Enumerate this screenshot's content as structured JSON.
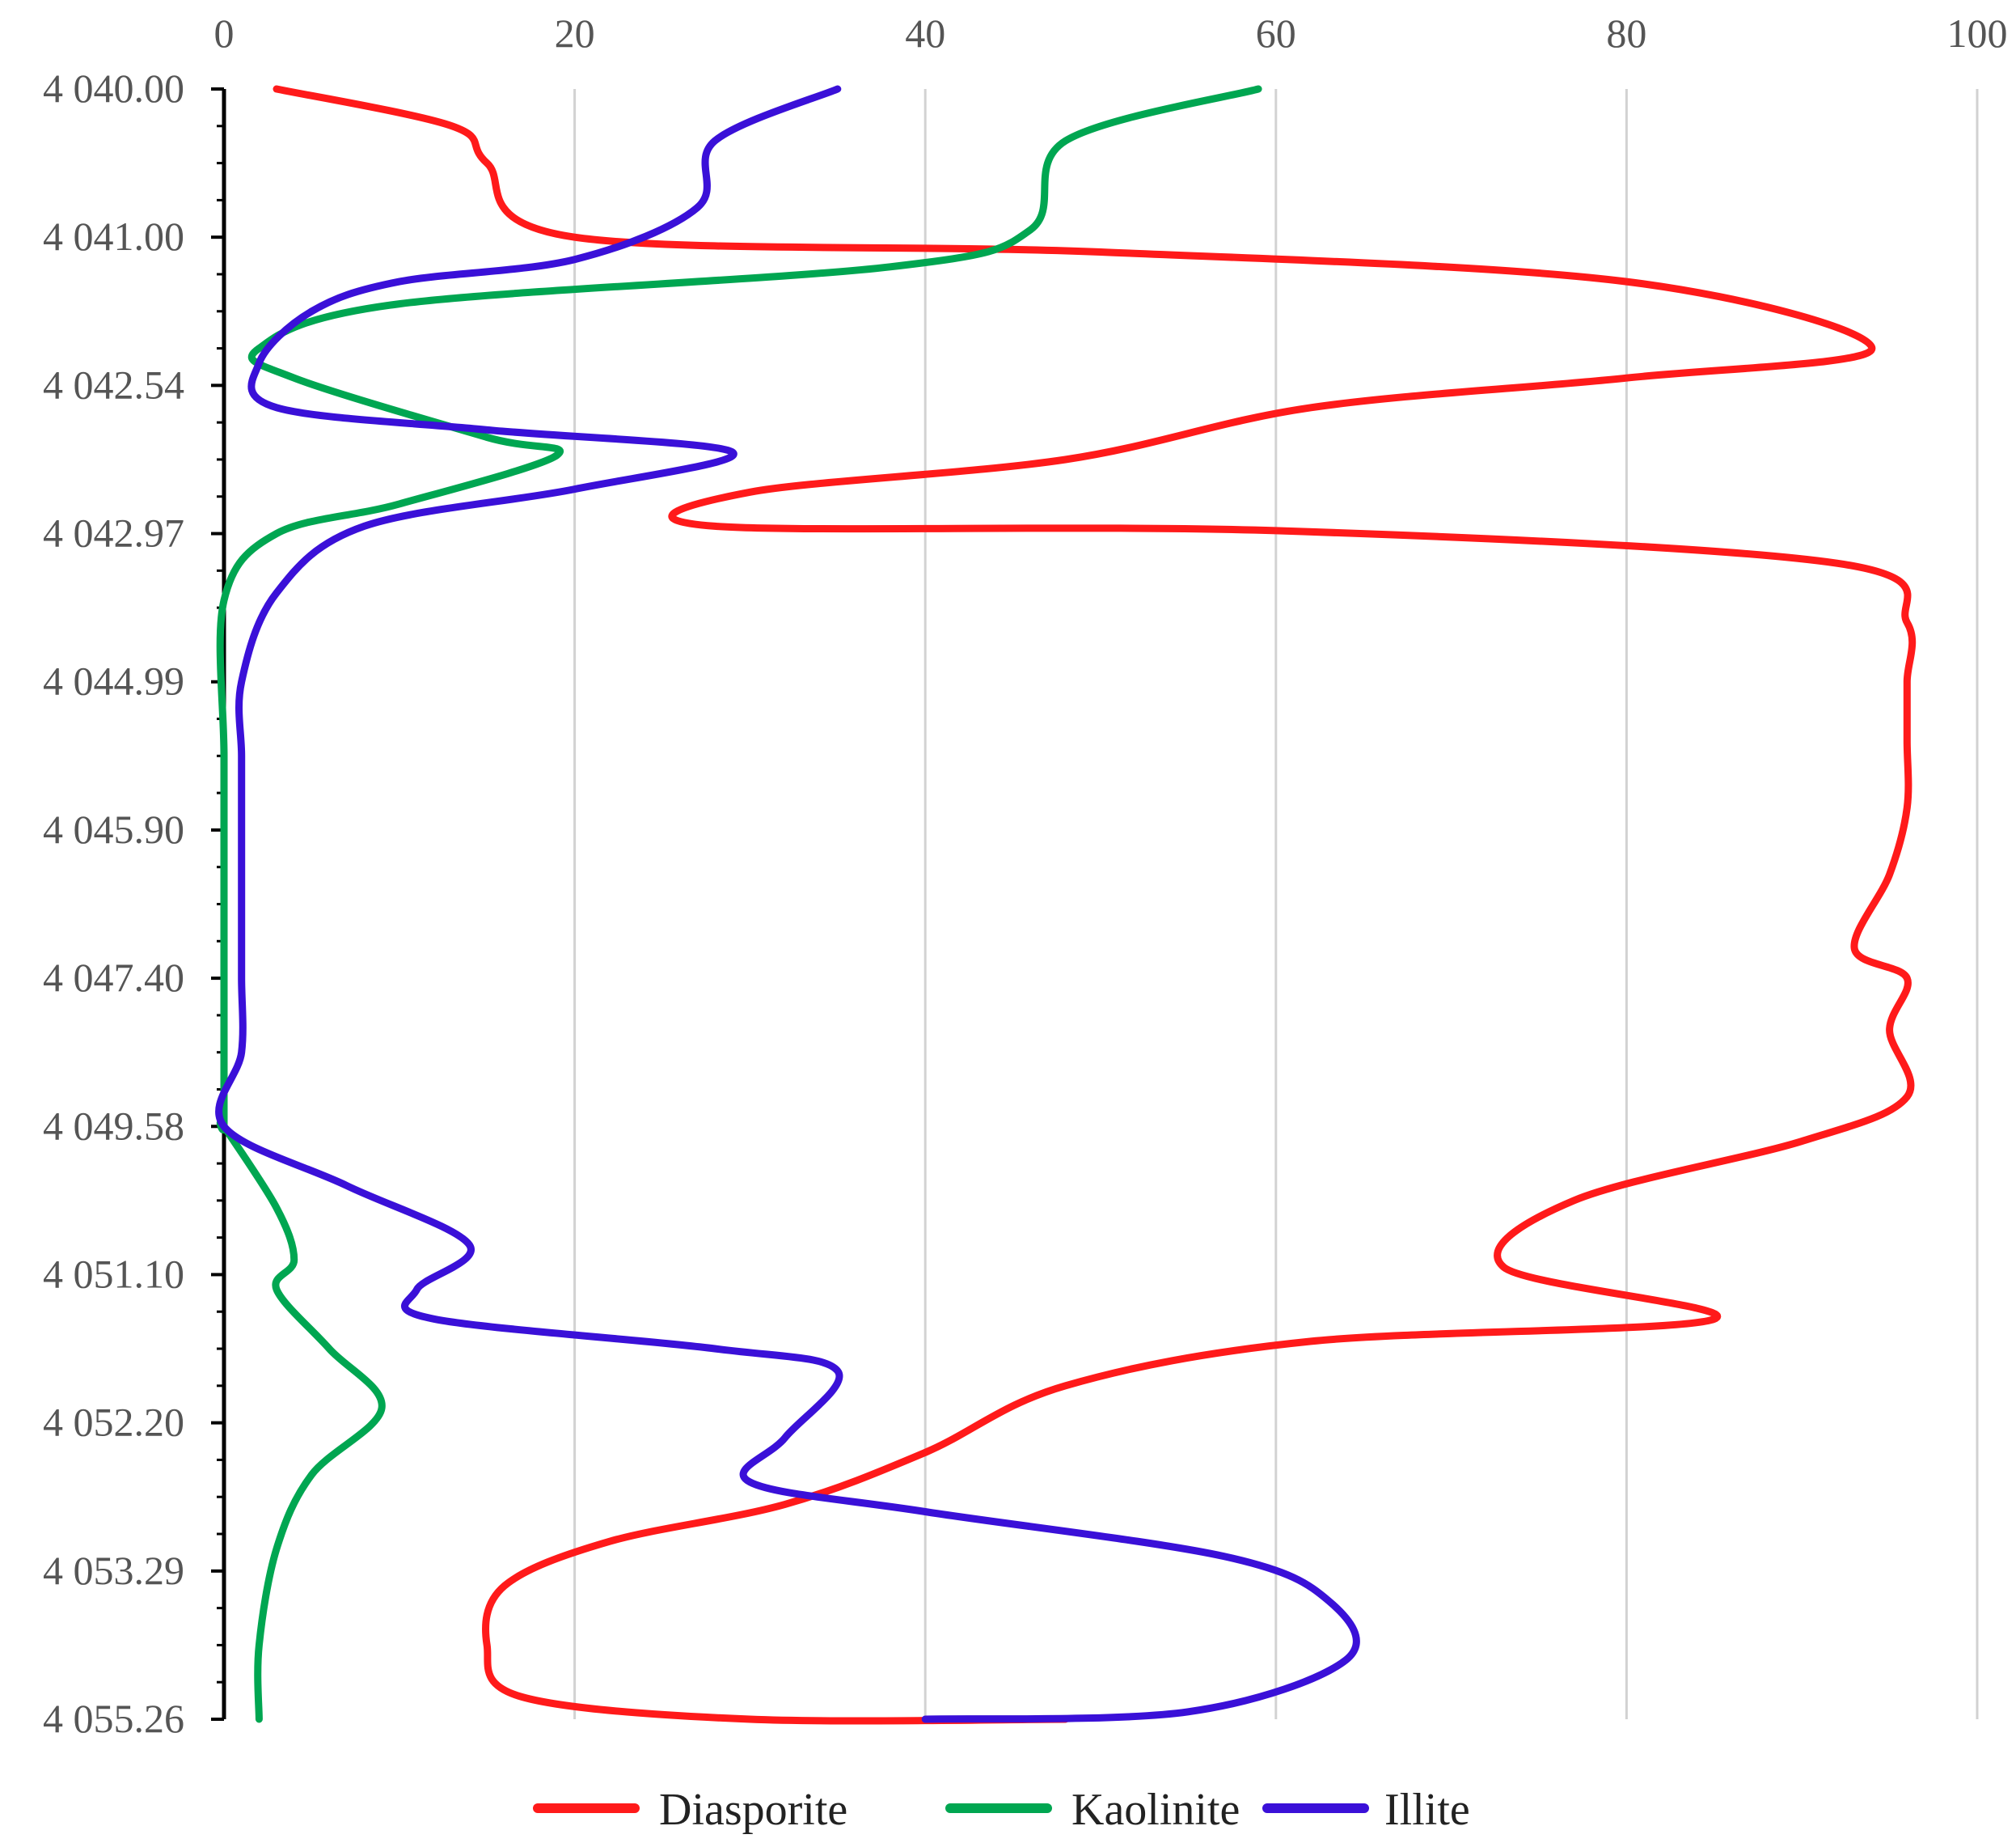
{
  "chart_data": {
    "type": "line",
    "title": "",
    "xlabel": "",
    "ylabel": "",
    "xlim": [
      0,
      100
    ],
    "x_ticks": [
      "0",
      "20",
      "40",
      "60",
      "80",
      "100"
    ],
    "y_ticks": [
      "4 040.00",
      "4 041.00",
      "4 042.54",
      "4 042.97",
      "4 044.99",
      "4 045.90",
      "4 047.40",
      "4 049.58",
      "4 051.10",
      "4 052.20",
      "4 053.29",
      "4 055.26"
    ],
    "grid": "vertical",
    "legend_position": "bottom",
    "series": [
      {
        "name": "Diasporite",
        "color": "#ff1a1a",
        "values": [
          [
            3,
            0
          ],
          [
            13,
            0.25
          ],
          [
            15,
            0.5
          ],
          [
            20,
            1.0
          ],
          [
            50,
            1.1
          ],
          [
            80,
            1.3
          ],
          [
            94,
            1.75
          ],
          [
            80,
            1.95
          ],
          [
            62,
            2.15
          ],
          [
            48,
            2.5
          ],
          [
            30,
            2.72
          ],
          [
            28,
            2.95
          ],
          [
            60,
            2.98
          ],
          [
            92,
            3.2
          ],
          [
            96,
            3.6
          ],
          [
            96,
            4.0
          ],
          [
            96,
            4.4
          ],
          [
            96,
            4.85
          ],
          [
            95,
            5.3
          ],
          [
            93,
            5.8
          ],
          [
            96,
            6.0
          ],
          [
            95,
            6.35
          ],
          [
            96,
            6.8
          ],
          [
            90,
            7.1
          ],
          [
            77,
            7.5
          ],
          [
            73,
            7.95
          ],
          [
            85,
            8.3
          ],
          [
            62,
            8.45
          ],
          [
            48,
            8.75
          ],
          [
            40,
            9.2
          ],
          [
            32,
            9.55
          ],
          [
            22,
            9.8
          ],
          [
            16,
            10.1
          ],
          [
            15,
            10.5
          ],
          [
            17,
            10.85
          ],
          [
            30,
            11.0
          ],
          [
            48,
            11.0
          ]
        ]
      },
      {
        "name": "Kaolinite",
        "color": "#00a651",
        "values": [
          [
            59,
            0
          ],
          [
            48,
            0.35
          ],
          [
            46,
            0.95
          ],
          [
            38,
            1.2
          ],
          [
            10,
            1.45
          ],
          [
            2,
            1.75
          ],
          [
            4,
            1.95
          ],
          [
            15,
            2.35
          ],
          [
            19,
            2.47
          ],
          [
            10,
            2.8
          ],
          [
            3,
            3.0
          ],
          [
            0,
            3.45
          ],
          [
            0,
            4.5
          ],
          [
            0,
            5.5
          ],
          [
            0,
            6.5
          ],
          [
            0,
            7.0
          ],
          [
            0,
            7.0
          ],
          [
            3,
            7.55
          ],
          [
            4,
            7.9
          ],
          [
            3,
            8.1
          ],
          [
            6,
            8.5
          ],
          [
            9,
            8.9
          ],
          [
            5,
            9.35
          ],
          [
            3,
            9.85
          ],
          [
            2,
            10.5
          ],
          [
            2,
            11.0
          ]
        ]
      },
      {
        "name": "Illite",
        "color": "#3a10d8",
        "values": [
          [
            35,
            0
          ],
          [
            28,
            0.35
          ],
          [
            27,
            0.8
          ],
          [
            20,
            1.15
          ],
          [
            10,
            1.3
          ],
          [
            5,
            1.5
          ],
          [
            2,
            1.85
          ],
          [
            3,
            2.15
          ],
          [
            15,
            2.3
          ],
          [
            29,
            2.45
          ],
          [
            20,
            2.7
          ],
          [
            8,
            2.95
          ],
          [
            3,
            3.4
          ],
          [
            1,
            4.0
          ],
          [
            1,
            4.5
          ],
          [
            1,
            5.0
          ],
          [
            1,
            5.5
          ],
          [
            1,
            6.0
          ],
          [
            1,
            6.5
          ],
          [
            0,
            7.0
          ],
          [
            7,
            7.4
          ],
          [
            14,
            7.8
          ],
          [
            11,
            8.1
          ],
          [
            12,
            8.3
          ],
          [
            28,
            8.5
          ],
          [
            35,
            8.65
          ],
          [
            32,
            9.1
          ],
          [
            30,
            9.4
          ],
          [
            40,
            9.6
          ],
          [
            57,
            9.9
          ],
          [
            63,
            10.2
          ],
          [
            64,
            10.6
          ],
          [
            55,
            10.95
          ],
          [
            40,
            11.0
          ]
        ]
      }
    ]
  }
}
